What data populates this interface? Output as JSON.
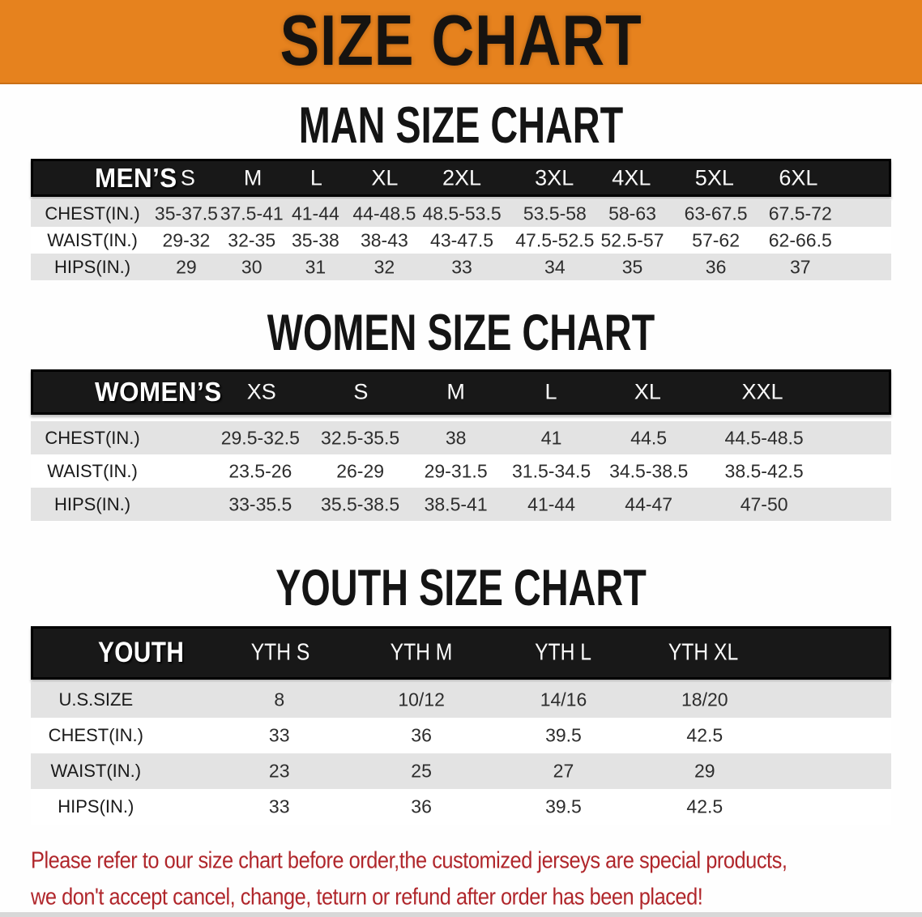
{
  "banner": {
    "title": "SIZE CHART"
  },
  "men": {
    "heading": "MAN SIZE CHART",
    "header_label": "MEN’S",
    "columns": [
      "S",
      "M",
      "L",
      "XL",
      "2XL",
      "3XL",
      "4XL",
      "5XL",
      "6XL"
    ],
    "rows": [
      {
        "label": "CHEST(IN.)",
        "values": [
          "35-37.5",
          "37.5-41",
          "41-44",
          "44-48.5",
          "48.5-53.5",
          "53.5-58",
          "58-63",
          "63-67.5",
          "67.5-72"
        ]
      },
      {
        "label": "WAIST(IN.)",
        "values": [
          "29-32",
          "32-35",
          "35-38",
          "38-43",
          "43-47.5",
          "47.5-52.5",
          "52.5-57",
          "57-62",
          "62-66.5"
        ]
      },
      {
        "label": "HIPS(IN.)",
        "values": [
          "29",
          "30",
          "31",
          "32",
          "33",
          "34",
          "35",
          "36",
          "37"
        ]
      }
    ]
  },
  "women": {
    "heading": "WOMEN SIZE CHART",
    "header_label": "WOMEN’S",
    "columns": [
      "XS",
      "S",
      "M",
      "L",
      "XL",
      "XXL"
    ],
    "rows": [
      {
        "label": "CHEST(IN.)",
        "values": [
          "29.5-32.5",
          "32.5-35.5",
          "38",
          "41",
          "44.5",
          "44.5-48.5"
        ]
      },
      {
        "label": "WAIST(IN.)",
        "values": [
          "23.5-26",
          "26-29",
          "29-31.5",
          "31.5-34.5",
          "34.5-38.5",
          "38.5-42.5"
        ]
      },
      {
        "label": "HIPS(IN.)",
        "values": [
          "33-35.5",
          "35.5-38.5",
          "38.5-41",
          "41-44",
          "44-47",
          "47-50"
        ]
      }
    ]
  },
  "youth": {
    "heading": "YOUTH SIZE CHART",
    "header_label": "YOUTH",
    "columns": [
      "YTH S",
      "YTH M",
      "YTH L",
      "YTH XL"
    ],
    "rows": [
      {
        "label": "U.S.SIZE",
        "values": [
          "8",
          "10/12",
          "14/16",
          "18/20"
        ]
      },
      {
        "label": "CHEST(IN.)",
        "values": [
          "33",
          "36",
          "39.5",
          "42.5"
        ]
      },
      {
        "label": "WAIST(IN.)",
        "values": [
          "23",
          "25",
          "27",
          "29"
        ]
      },
      {
        "label": "HIPS(IN.)",
        "values": [
          "33",
          "36",
          "39.5",
          "42.5"
        ]
      }
    ]
  },
  "footer": {
    "line1": "Please refer to our size chart before order,the customized jerseys are special products,",
    "line2": "we don't accept cancel, change, teturn or refund after order has been placed!"
  },
  "colors": {
    "banner_bg": "#E6821E",
    "header_bar": "#181818",
    "band_gray": "#E3E3E3",
    "footer_red": "#B0262B"
  }
}
